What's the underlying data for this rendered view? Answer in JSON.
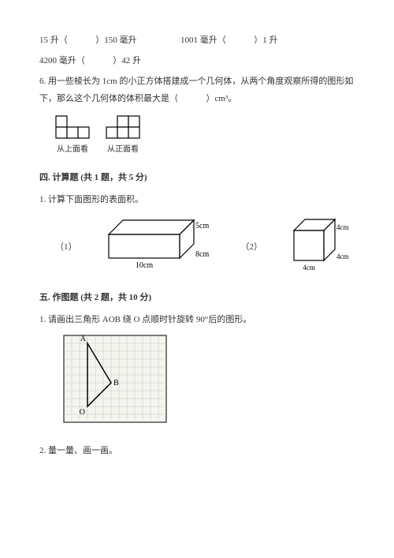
{
  "q5": {
    "part1_left": "15 升（",
    "part1_right": "）150 毫升",
    "part2_left": "1001 毫升（",
    "part2_right": "）1 升",
    "part3_left": "4200 毫升（",
    "part3_right": "）42 升"
  },
  "q6": {
    "text": "6. 用一些棱长为 1cm 的小正方体搭建成一个几何体，从两个角度观察所得的图形如下，那么这个几何体的体积最大是（",
    "unit": "）cm³。",
    "top_view_caption": "从上面看",
    "front_view_caption": "从正面看",
    "cell": 14,
    "stroke": "#000000",
    "fill": "#ffffff"
  },
  "sec4": {
    "title": "四. 计算题 (共 1 题，共 5 分)",
    "q1": "1. 计算下面图形的表面积。",
    "shape1": {
      "label": "（1）",
      "l": "10cm",
      "w": "8cm",
      "h": "5cm",
      "width": 90,
      "height": 30,
      "depth": 18,
      "stroke": "#000000"
    },
    "shape2": {
      "label": "（2）",
      "s": "4cm",
      "size": 38,
      "depth": 14,
      "stroke": "#000000"
    }
  },
  "sec5": {
    "title": "五. 作图题 (共 2 题，共 10 分)",
    "q1": "1. 请画出三角形 AOB 绕 O 点顺时针旋转 90°后的图形。",
    "q2": "2. 量一量、画一画。",
    "grid": {
      "cols": 13,
      "rows": 11,
      "cell": 10,
      "bg": "#f5f5f0",
      "line": "#c8c8c0",
      "border": "#333333",
      "tri_stroke": "#000000",
      "labels": {
        "A": "A",
        "B": "B",
        "O": "O"
      },
      "A": [
        3,
        1
      ],
      "B": [
        6,
        6
      ],
      "O": [
        3,
        9
      ]
    }
  }
}
